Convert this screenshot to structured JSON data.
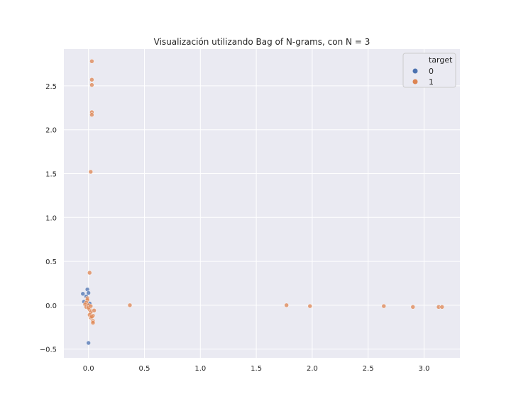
{
  "chart_data": {
    "type": "scatter",
    "title": "Visualización utilizando Bag of N-grams, con N = 3",
    "xlabel": "",
    "ylabel": "",
    "xlim": [
      -0.22,
      3.32
    ],
    "ylim": [
      -0.6,
      2.92
    ],
    "xticks": [
      0.0,
      0.5,
      1.0,
      1.5,
      2.0,
      2.5,
      3.0
    ],
    "xtick_labels": [
      "0.0",
      "0.5",
      "1.0",
      "1.5",
      "2.0",
      "2.5",
      "3.0"
    ],
    "yticks": [
      -0.5,
      0.0,
      0.5,
      1.0,
      1.5,
      2.0,
      2.5
    ],
    "ytick_labels": [
      "−0.5",
      "0.0",
      "0.5",
      "1.0",
      "1.5",
      "2.0",
      "2.5"
    ],
    "grid": true,
    "legend": {
      "title": "target",
      "placement": "top-right"
    },
    "series": [
      {
        "name": "0",
        "color": "#4c72b0",
        "points": [
          [
            -0.05,
            0.13
          ],
          [
            -0.01,
            0.18
          ],
          [
            -0.04,
            0.04
          ],
          [
            0.0,
            -0.43
          ],
          [
            -0.02,
            0.1
          ],
          [
            0.01,
            0.02
          ],
          [
            0.0,
            0.14
          ]
        ]
      },
      {
        "name": "1",
        "color": "#dd8452",
        "points": [
          [
            0.03,
            2.78
          ],
          [
            0.03,
            2.57
          ],
          [
            0.03,
            2.51
          ],
          [
            0.03,
            2.2
          ],
          [
            0.03,
            2.17
          ],
          [
            0.02,
            1.52
          ],
          [
            0.01,
            0.37
          ],
          [
            -0.01,
            0.08
          ],
          [
            -0.01,
            0.06
          ],
          [
            -0.02,
            0.03
          ],
          [
            -0.03,
            0.01
          ],
          [
            -0.02,
            -0.02
          ],
          [
            0.0,
            0.0
          ],
          [
            0.01,
            -0.05
          ],
          [
            0.02,
            -0.08
          ],
          [
            0.05,
            -0.06
          ],
          [
            0.04,
            -0.12
          ],
          [
            0.02,
            -0.14
          ],
          [
            0.01,
            -0.11
          ],
          [
            0.04,
            -0.18
          ],
          [
            0.04,
            -0.2
          ],
          [
            0.03,
            -0.13
          ],
          [
            0.0,
            -0.03
          ],
          [
            0.02,
            -0.01
          ],
          [
            0.37,
            0.0
          ],
          [
            1.77,
            0.0
          ],
          [
            1.98,
            -0.01
          ],
          [
            2.64,
            -0.01
          ],
          [
            2.9,
            -0.02
          ],
          [
            3.13,
            -0.02
          ],
          [
            3.16,
            -0.02
          ]
        ]
      }
    ]
  }
}
